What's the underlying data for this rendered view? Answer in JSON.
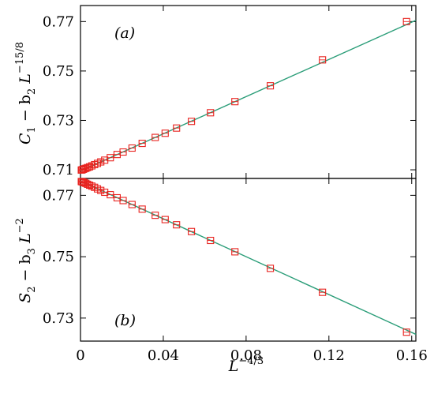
{
  "chart_data": [
    {
      "type": "scatter",
      "panel_label": "(a)",
      "ylabel": {
        "main": "C",
        "sub": "1",
        "mid": " − b",
        "sub2": "2",
        "tail": " L",
        "sup": "−15/8"
      },
      "xlim": [
        0,
        0.162
      ],
      "ylim": [
        0.7065,
        0.7765
      ],
      "yticks": [
        0.71,
        0.73,
        0.75,
        0.77
      ],
      "ytick_labels": [
        "0.71",
        "0.73",
        "0.75",
        "0.77"
      ],
      "grid": false,
      "marker": "open-square",
      "marker_color": "#e8231f",
      "fit_line": {
        "x": [
          0,
          0.162
        ],
        "y": [
          0.7095,
          0.7705
        ],
        "color": "#2a9d78"
      },
      "series": [
        {
          "x": [
            0.0004,
            0.0008,
            0.0013,
            0.0019,
            0.0026,
            0.0034,
            0.0044,
            0.0055,
            0.0068,
            0.0082,
            0.0098,
            0.0117,
            0.0144,
            0.0177,
            0.0206,
            0.0249,
            0.0298,
            0.0361,
            0.0409,
            0.0464,
            0.0536,
            0.0628,
            0.0746,
            0.0917,
            0.1169,
            0.1575
          ],
          "y": [
            0.7099,
            0.71,
            0.7102,
            0.7104,
            0.7106,
            0.7109,
            0.7112,
            0.7116,
            0.7121,
            0.7126,
            0.7132,
            0.7139,
            0.7149,
            0.7162,
            0.7172,
            0.7188,
            0.7207,
            0.7231,
            0.7248,
            0.7269,
            0.7296,
            0.7331,
            0.7376,
            0.744,
            0.7545,
            0.77
          ]
        }
      ]
    },
    {
      "type": "scatter",
      "panel_label": "(b)",
      "xlabel": {
        "main": "L",
        "sup": "−4/3"
      },
      "ylabel": {
        "main": "S",
        "sub": "2",
        "mid": " − b",
        "sub2": "3",
        "tail": " L",
        "sup": "−2"
      },
      "xlim": [
        0,
        0.162
      ],
      "ylim": [
        0.7225,
        0.7755
      ],
      "xticks": [
        0,
        0.04,
        0.08,
        0.12,
        0.16
      ],
      "xtick_labels": [
        "0",
        "0.04",
        "0.08",
        "0.12",
        "0.16"
      ],
      "yticks": [
        0.73,
        0.75,
        0.77
      ],
      "ytick_labels": [
        "0.73",
        "0.75",
        "0.77"
      ],
      "grid": false,
      "marker": "open-square",
      "marker_color": "#e8231f",
      "fit_line": {
        "x": [
          0,
          0.162
        ],
        "y": [
          0.7747,
          0.7247
        ],
        "color": "#2a9d78"
      },
      "series": [
        {
          "x": [
            0.0004,
            0.0008,
            0.0013,
            0.0019,
            0.0026,
            0.0034,
            0.0044,
            0.0055,
            0.0068,
            0.0082,
            0.0098,
            0.0117,
            0.0144,
            0.0177,
            0.0206,
            0.0249,
            0.0298,
            0.0361,
            0.0409,
            0.0464,
            0.0536,
            0.0628,
            0.0746,
            0.0917,
            0.1169,
            0.1575
          ],
          "y": [
            0.7745,
            0.7744,
            0.7743,
            0.7741,
            0.7739,
            0.7736,
            0.7733,
            0.773,
            0.7726,
            0.7721,
            0.7716,
            0.771,
            0.7702,
            0.7692,
            0.7683,
            0.767,
            0.7655,
            0.7635,
            0.7621,
            0.7604,
            0.7582,
            0.7553,
            0.7516,
            0.7462,
            0.7384,
            0.7254
          ]
        }
      ]
    }
  ]
}
